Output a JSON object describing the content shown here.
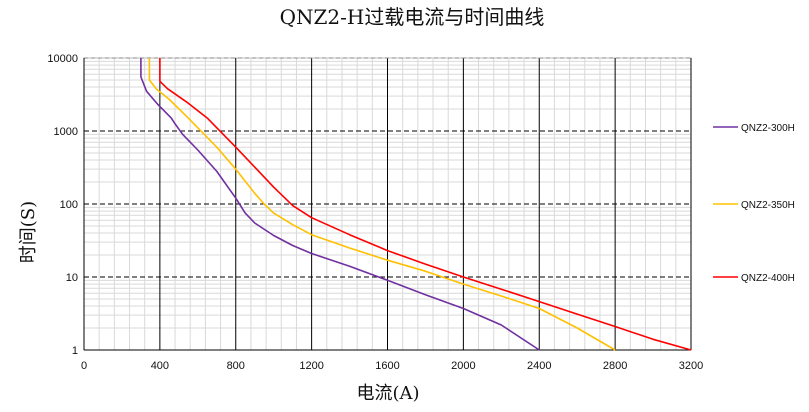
{
  "chart_data": {
    "type": "line",
    "title": "QNZ2-H过载电流与时间曲线",
    "xlabel": "电流(A)",
    "ylabel": "时间(S)",
    "xlim": [
      0,
      3200
    ],
    "ylim": [
      1,
      10000
    ],
    "y_scale": "log",
    "x_ticks": [
      0,
      400,
      800,
      1200,
      1600,
      2000,
      2400,
      2800,
      3200
    ],
    "x_tick_labels": [
      "0",
      "400",
      "800",
      "1200",
      "1600",
      "2000",
      "2400",
      "2800",
      "3200"
    ],
    "y_ticks": [
      1,
      10,
      100,
      1000,
      10000
    ],
    "y_tick_labels": [
      "1",
      "10",
      "100",
      "1000",
      "10000"
    ],
    "grid": true,
    "legend_position": "right",
    "series": [
      {
        "name": "QNZ2-300H",
        "color": "#7030a0",
        "points": [
          [
            300,
            10000
          ],
          [
            300,
            5500
          ],
          [
            330,
            3500
          ],
          [
            390,
            2300
          ],
          [
            460,
            1500
          ],
          [
            480,
            1250
          ],
          [
            520,
            900
          ],
          [
            600,
            550
          ],
          [
            700,
            280
          ],
          [
            800,
            120
          ],
          [
            850,
            75
          ],
          [
            900,
            55
          ],
          [
            1000,
            37
          ],
          [
            1100,
            27
          ],
          [
            1200,
            21
          ],
          [
            1400,
            14
          ],
          [
            1600,
            9
          ],
          [
            1800,
            5.7
          ],
          [
            2000,
            3.7
          ],
          [
            2200,
            2.2
          ],
          [
            2400,
            1
          ]
        ]
      },
      {
        "name": "QNZ2-350H",
        "color": "#ffc000",
        "points": [
          [
            345,
            10000
          ],
          [
            345,
            5000
          ],
          [
            380,
            3800
          ],
          [
            450,
            2700
          ],
          [
            550,
            1500
          ],
          [
            700,
            600
          ],
          [
            800,
            300
          ],
          [
            900,
            140
          ],
          [
            950,
            100
          ],
          [
            1000,
            75
          ],
          [
            1100,
            52
          ],
          [
            1200,
            38
          ],
          [
            1400,
            25
          ],
          [
            1600,
            17
          ],
          [
            1800,
            12
          ],
          [
            2000,
            8
          ],
          [
            2200,
            5.5
          ],
          [
            2400,
            3.7
          ],
          [
            2600,
            2
          ],
          [
            2800,
            1
          ]
        ]
      },
      {
        "name": "QNZ2-400H",
        "color": "#ff0000",
        "points": [
          [
            400,
            10000
          ],
          [
            400,
            4800
          ],
          [
            440,
            3800
          ],
          [
            550,
            2400
          ],
          [
            650,
            1500
          ],
          [
            800,
            600
          ],
          [
            900,
            320
          ],
          [
            1000,
            170
          ],
          [
            1100,
            95
          ],
          [
            1200,
            65
          ],
          [
            1400,
            38
          ],
          [
            1600,
            23
          ],
          [
            1800,
            15
          ],
          [
            2000,
            10
          ],
          [
            2200,
            6.8
          ],
          [
            2400,
            4.6
          ],
          [
            2600,
            3.1
          ],
          [
            2800,
            2.1
          ],
          [
            3000,
            1.4
          ],
          [
            3200,
            1
          ]
        ]
      }
    ]
  }
}
